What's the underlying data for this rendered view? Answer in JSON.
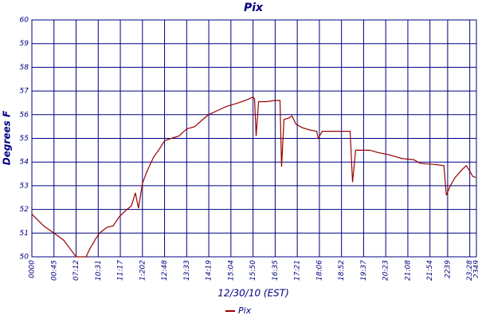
{
  "chart_data": {
    "type": "line",
    "title": "Pix",
    "x_label": "12/30/10 (EST)",
    "y_label": "Degrees F",
    "xlim": [
      0,
      20.1
    ],
    "ylim": [
      50,
      60
    ],
    "yticks": [
      50,
      51,
      52,
      53,
      54,
      55,
      56,
      57,
      58,
      59,
      60
    ],
    "xticks": [
      {
        "value": 0,
        "label": "0000"
      },
      {
        "value": 1,
        "label": "00:45"
      },
      {
        "value": 2,
        "label": "07:12"
      },
      {
        "value": 3,
        "label": "10:31"
      },
      {
        "value": 4,
        "label": "11:17"
      },
      {
        "value": 5,
        "label": "1:202"
      },
      {
        "value": 6,
        "label": "12:48"
      },
      {
        "value": 7,
        "label": "13:33"
      },
      {
        "value": 8,
        "label": "14:19"
      },
      {
        "value": 9,
        "label": "15:04"
      },
      {
        "value": 10,
        "label": "15:50"
      },
      {
        "value": 11,
        "label": "16:35"
      },
      {
        "value": 12,
        "label": "17:21"
      },
      {
        "value": 13,
        "label": "18:06"
      },
      {
        "value": 14,
        "label": "18:52"
      },
      {
        "value": 15,
        "label": "19:37"
      },
      {
        "value": 16,
        "label": "20:23"
      },
      {
        "value": 17,
        "label": "21:08"
      },
      {
        "value": 18,
        "label": "21:54"
      },
      {
        "value": 18.8,
        "label": "2239"
      },
      {
        "value": 19.8,
        "label": "23:28"
      },
      {
        "value": 20.1,
        "label": "2349"
      }
    ],
    "grid": true,
    "grid_color": "#000080",
    "legend": "bottom",
    "series": [
      {
        "name": "Pix",
        "color": "#990000",
        "x": [
          0,
          0.54,
          1,
          1.44,
          1.8,
          2.0,
          2.45,
          2.6,
          2.88,
          3.06,
          3.4,
          3.67,
          3.96,
          4.3,
          4.5,
          4.68,
          4.82,
          5.0,
          5.2,
          5.5,
          5.8,
          6.0,
          6.3,
          6.65,
          7.0,
          7.37,
          7.73,
          7.99,
          8.45,
          8.8,
          9.17,
          9.5,
          9.78,
          10.0,
          10.07,
          10.14,
          10.25,
          10.6,
          10.97,
          11.22,
          11.29,
          11.4,
          11.6,
          11.76,
          11.94,
          12.23,
          12.59,
          12.88,
          12.95,
          13.13,
          14.39,
          14.5,
          14.64,
          15.29,
          15.65,
          16.19,
          16.73,
          17.27,
          17.55,
          18.17,
          18.63,
          18.74,
          18.92,
          19.14,
          19.42,
          19.64,
          19.78,
          19.93,
          20.07
        ],
        "values": [
          51.8,
          51.3,
          51.0,
          50.7,
          50.25,
          50.0,
          50.0,
          50.3,
          50.75,
          51.0,
          51.25,
          51.3,
          51.7,
          52.0,
          52.15,
          52.7,
          52.05,
          53.1,
          53.6,
          54.2,
          54.6,
          54.9,
          55.0,
          55.1,
          55.4,
          55.5,
          55.8,
          56.0,
          56.2,
          56.35,
          56.45,
          56.55,
          56.65,
          56.75,
          56.65,
          55.1,
          56.55,
          56.55,
          56.6,
          56.6,
          53.8,
          55.8,
          55.85,
          55.95,
          55.6,
          55.45,
          55.35,
          55.3,
          55.0,
          55.3,
          55.3,
          53.15,
          54.5,
          54.5,
          54.4,
          54.3,
          54.15,
          54.1,
          53.95,
          53.9,
          53.85,
          52.6,
          53.0,
          53.35,
          53.65,
          53.85,
          53.65,
          53.4,
          53.35
        ]
      }
    ]
  }
}
